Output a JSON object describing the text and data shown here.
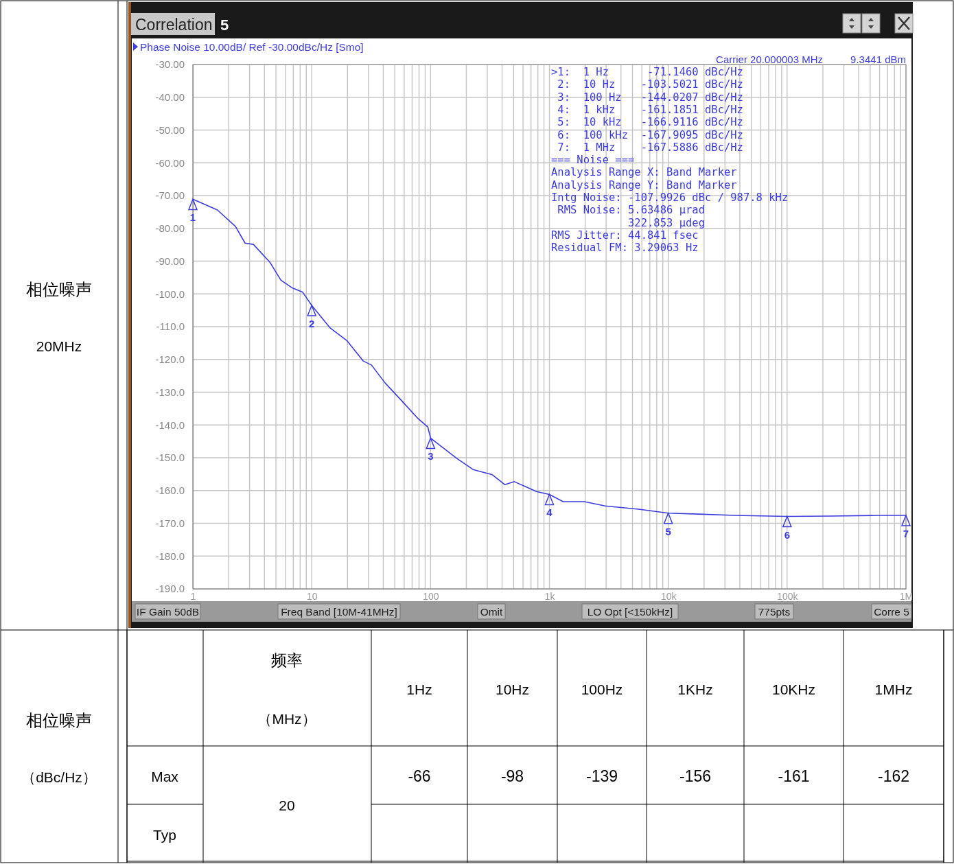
{
  "chart_data": {
    "type": "line",
    "title": "Phase Noise 10.00dB/ Ref -30.00dBc/Hz [Smo]",
    "x": [
      1,
      1.61,
      2.28,
      2.75,
      3.23,
      4.44,
      5.5,
      6.8,
      8.4,
      10,
      14.3,
      19.7,
      27.2,
      31.8,
      41.5,
      57.1,
      78.7,
      94.8,
      100,
      166,
      228,
      331,
      421,
      507,
      777,
      1000,
      1306,
      1973,
      2939,
      5637,
      10000,
      17950,
      36400,
      100000,
      234000,
      596000,
      1000000
    ],
    "series": [
      {
        "color": "#3c3cdc",
        "values": [
          -71.1,
          -74.4,
          -79.4,
          -84.5,
          -84.9,
          -90.3,
          -95.8,
          -98.1,
          -99.5,
          -103.5,
          -110.4,
          -114.2,
          -120.5,
          -121.7,
          -127.2,
          -132.6,
          -138.1,
          -140.6,
          -144.0,
          -150.2,
          -153.6,
          -155.2,
          -158.2,
          -157.3,
          -160.3,
          -161.2,
          -163.4,
          -163.4,
          -164.7,
          -165.7,
          -166.9,
          -167.2,
          -167.6,
          -167.9,
          -167.8,
          -167.6,
          -167.6
        ]
      }
    ],
    "log": "x",
    "grid": true,
    "marker": "none",
    "line_style": "solid",
    "xlim": [
      1,
      1000000
    ],
    "xticks": [
      {
        "value": 1,
        "label": "1"
      },
      {
        "value": 2,
        "label": null
      },
      {
        "value": 3,
        "label": null
      },
      {
        "value": 4,
        "label": null
      },
      {
        "value": 5,
        "label": null
      },
      {
        "value": 6,
        "label": null
      },
      {
        "value": 7,
        "label": null
      },
      {
        "value": 8,
        "label": null
      },
      {
        "value": 9,
        "label": null
      },
      {
        "value": 10,
        "label": "10"
      },
      {
        "value": 20,
        "label": null
      },
      {
        "value": 30,
        "label": null
      },
      {
        "value": 40,
        "label": null
      },
      {
        "value": 50,
        "label": null
      },
      {
        "value": 60,
        "label": null
      },
      {
        "value": 70,
        "label": null
      },
      {
        "value": 80,
        "label": null
      },
      {
        "value": 90,
        "label": null
      },
      {
        "value": 100,
        "label": "100"
      },
      {
        "value": 200,
        "label": null
      },
      {
        "value": 300,
        "label": null
      },
      {
        "value": 400,
        "label": null
      },
      {
        "value": 500,
        "label": null
      },
      {
        "value": 600,
        "label": null
      },
      {
        "value": 700,
        "label": null
      },
      {
        "value": 800,
        "label": null
      },
      {
        "value": 900,
        "label": null
      },
      {
        "value": 1000,
        "label": "1k"
      },
      {
        "value": 2000,
        "label": null
      },
      {
        "value": 3000,
        "label": null
      },
      {
        "value": 4000,
        "label": null
      },
      {
        "value": 5000,
        "label": null
      },
      {
        "value": 6000,
        "label": null
      },
      {
        "value": 7000,
        "label": null
      },
      {
        "value": 8000,
        "label": null
      },
      {
        "value": 9000,
        "label": null
      },
      {
        "value": 10000,
        "label": "10k"
      },
      {
        "value": 20000,
        "label": null
      },
      {
        "value": 30000,
        "label": null
      },
      {
        "value": 40000,
        "label": null
      },
      {
        "value": 50000,
        "label": null
      },
      {
        "value": 60000,
        "label": null
      },
      {
        "value": 70000,
        "label": null
      },
      {
        "value": 80000,
        "label": null
      },
      {
        "value": 90000,
        "label": null
      },
      {
        "value": 100000,
        "label": "100k"
      },
      {
        "value": 200000,
        "label": null
      },
      {
        "value": 300000,
        "label": null
      },
      {
        "value": 400000,
        "label": null
      },
      {
        "value": 500000,
        "label": null
      },
      {
        "value": 600000,
        "label": null
      },
      {
        "value": 700000,
        "label": null
      },
      {
        "value": 800000,
        "label": null
      },
      {
        "value": 900000,
        "label": null
      },
      {
        "value": 1000000,
        "label": "1M"
      }
    ],
    "ylim": [
      -190,
      -30
    ],
    "yticks": [
      {
        "value": -30,
        "label": "-30.00"
      },
      {
        "value": -40,
        "label": "-40.00"
      },
      {
        "value": -50,
        "label": "-50.00"
      },
      {
        "value": -60,
        "label": "-60.00"
      },
      {
        "value": -70,
        "label": "-70.00"
      },
      {
        "value": -80,
        "label": "-80.00"
      },
      {
        "value": -90,
        "label": "-90.00"
      },
      {
        "value": -100,
        "label": "-100.0"
      },
      {
        "value": -110,
        "label": "-110.0"
      },
      {
        "value": -120,
        "label": "-120.0"
      },
      {
        "value": -130,
        "label": "-130.0"
      },
      {
        "value": -140,
        "label": "-140.0"
      },
      {
        "value": -150,
        "label": "-150.0"
      },
      {
        "value": -160,
        "label": "-160.0"
      },
      {
        "value": -170,
        "label": "-170.0"
      },
      {
        "value": -180,
        "label": "-180.0"
      },
      {
        "value": -190,
        "label": "-190.0"
      }
    ],
    "annotations": [
      "Correlation",
      "5",
      "Carrier 20.000003 MHz",
      "9.3441 dBm",
      ">1:  1 Hz      -71.1460 dBc/Hz",
      " 2:  10 Hz    -103.5021 dBc/Hz",
      " 3:  100 Hz   -144.0207 dBc/Hz",
      " 4:  1 kHz    -161.1851 dBc/Hz",
      " 5:  10 kHz   -166.9116 dBc/Hz",
      " 6:  100 kHz  -167.9095 dBc/Hz",
      " 7:  1 MHz    -167.5886 dBc/Hz",
      "=== Noise ===",
      "Analysis Range X: Band Marker",
      "Analysis Range Y: Band Marker",
      "Intg Noise: -107.9926 dBc / 987.8 kHz",
      " RMS Noise: 5.63486 µrad",
      "            322.853 µdeg",
      "RMS Jitter: 44.841 fsec",
      "Residual FM: 3.29063 Hz",
      "IF Gain 50dB",
      "Freq Band [10M-41MHz]",
      "Omit",
      "LO Opt [<150kHz]",
      "775pts",
      "Corre 5",
      "相位噪声",
      "20MHz",
      "相位噪声",
      "（dBc/Hz）",
      "频率",
      "（MHz）",
      "1Hz",
      "10Hz",
      "100Hz",
      "1KHz",
      "10KHz",
      "1MHz",
      "Max",
      "-66",
      "-98",
      "-139",
      "-156",
      "-161",
      "-162",
      "20",
      "Typ",
      {
        "text": "1",
        "x": 1,
        "y": -71.146
      },
      {
        "text": "2",
        "x": 10,
        "y": -103.5021
      },
      {
        "text": "3",
        "x": 100,
        "y": -144.0207
      },
      {
        "text": "4",
        "x": 1000,
        "y": -161.1851
      },
      {
        "text": "5",
        "x": 10000,
        "y": -166.9116
      },
      {
        "text": "6",
        "x": 100000,
        "y": -167.9095
      },
      {
        "text": "7",
        "x": 1000000,
        "y": -167.5886
      }
    ]
  }
}
